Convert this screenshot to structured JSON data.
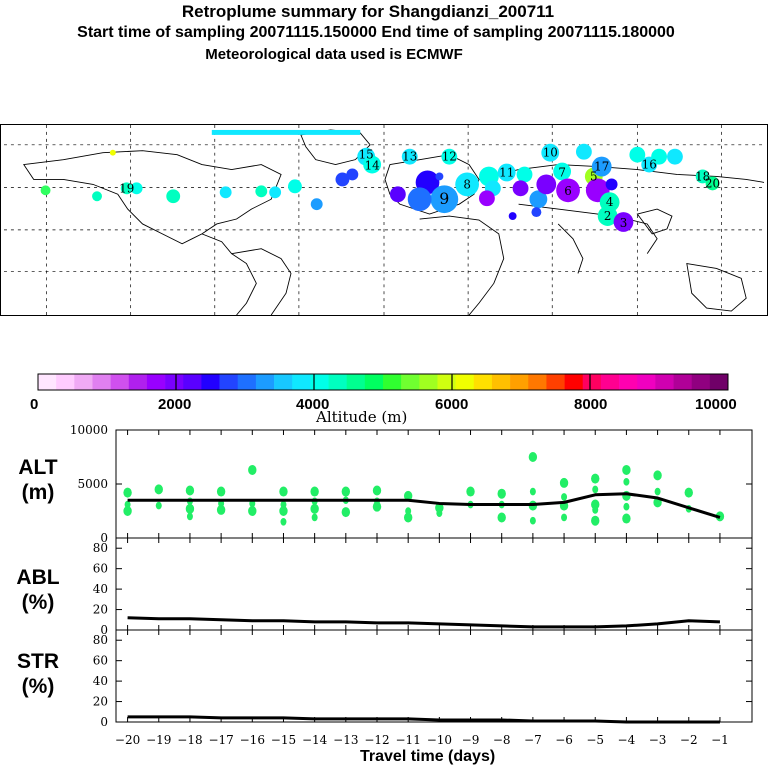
{
  "title": {
    "line1": "Retroplume summary for Shangdianzi_200711",
    "line2": "Start time of sampling 20071115.150000     End time of sampling 20071115.180000",
    "line3": "Meteorological data used is ECMWF"
  },
  "colors": {
    "marker": "#22ee66",
    "line": "#000000",
    "map_lines": "#000000"
  },
  "colorbar": {
    "labels": [
      "0",
      "2000",
      "4000",
      "6000",
      "8000",
      "10000"
    ],
    "title": "Altitude (m)",
    "palette": [
      "#ffe6ff",
      "#ffccff",
      "#f0aaf5",
      "#e080f0",
      "#d050ee",
      "#b020ee",
      "#9900ff",
      "#7a00ff",
      "#5a00ff",
      "#2200ff",
      "#2244ff",
      "#1e70ff",
      "#1c9cff",
      "#18c8ff",
      "#10e8ff",
      "#00ffe8",
      "#00ffc0",
      "#00ff90",
      "#00ff60",
      "#30ff30",
      "#70ff30",
      "#a0ff20",
      "#d0ff10",
      "#f0ff00",
      "#ffe000",
      "#ffc000",
      "#ffa000",
      "#ff7800",
      "#ff4000",
      "#ff0000",
      "#ff0060",
      "#ff0090",
      "#ff00b0",
      "#f000c0",
      "#d000b0",
      "#b00098",
      "#900080",
      "#700068"
    ]
  },
  "map": {
    "labels": [
      "15",
      "14",
      "13",
      "12",
      "11",
      "10",
      "9",
      "8",
      "7",
      "6",
      "5",
      "4",
      "3",
      "2",
      "17",
      "16",
      "18",
      "19",
      "20"
    ]
  },
  "chart_data": [
    {
      "type": "line",
      "name": "ALT",
      "ylabel_top": "ALT",
      "ylabel_unit": "(m)",
      "ylim": [
        0,
        10000
      ],
      "yticks": [
        "10000",
        "5000",
        "0"
      ],
      "x": [
        -20,
        -19,
        -18,
        -17,
        -16,
        -15,
        -14,
        -13,
        -12,
        -11,
        -10,
        -9,
        -8,
        -7,
        -6,
        -5,
        -4,
        -3,
        -2,
        -1
      ],
      "values": [
        3500,
        3500,
        3500,
        3500,
        3500,
        3500,
        3500,
        3500,
        3500,
        3500,
        3200,
        3100,
        3100,
        3100,
        3300,
        4000,
        4100,
        3700,
        2800,
        1900
      ],
      "scatter": [
        {
          "x": -20,
          "y": [
            4200,
            3100,
            2500
          ]
        },
        {
          "x": -19,
          "y": [
            4500,
            3000
          ]
        },
        {
          "x": -18,
          "y": [
            4400,
            3400,
            2700,
            2000
          ]
        },
        {
          "x": -17,
          "y": [
            4300,
            3200,
            2600
          ]
        },
        {
          "x": -16,
          "y": [
            6300,
            3200,
            2500
          ]
        },
        {
          "x": -15,
          "y": [
            4300,
            3100,
            2500,
            1500
          ]
        },
        {
          "x": -14,
          "y": [
            4300,
            3400,
            2700,
            1900
          ]
        },
        {
          "x": -13,
          "y": [
            4300,
            3500,
            2400
          ]
        },
        {
          "x": -12,
          "y": [
            4400,
            3400,
            2900
          ]
        },
        {
          "x": -11,
          "y": [
            3900,
            2500,
            1900
          ]
        },
        {
          "x": -10,
          "y": [
            2800,
            2300
          ]
        },
        {
          "x": -9,
          "y": [
            4300,
            3100
          ]
        },
        {
          "x": -8,
          "y": [
            4100,
            3100,
            1900
          ]
        },
        {
          "x": -7,
          "y": [
            7500,
            4300,
            3000,
            1600
          ]
        },
        {
          "x": -6,
          "y": [
            5100,
            3800,
            3000,
            1900
          ]
        },
        {
          "x": -5,
          "y": [
            5500,
            4500,
            3100,
            2600,
            1600
          ]
        },
        {
          "x": -4,
          "y": [
            6300,
            5200,
            3900,
            2900,
            1800
          ]
        },
        {
          "x": -3,
          "y": [
            5800,
            4300,
            3300
          ]
        },
        {
          "x": -2,
          "y": [
            4200,
            2700
          ]
        },
        {
          "x": -1,
          "y": [
            2000
          ]
        }
      ]
    },
    {
      "type": "line",
      "name": "ABL",
      "ylabel_top": "ABL",
      "ylabel_unit": "(%)",
      "ylim": [
        0,
        90
      ],
      "yticks": [
        "80",
        "60",
        "40",
        "20",
        "0"
      ],
      "x": [
        -20,
        -19,
        -18,
        -17,
        -16,
        -15,
        -14,
        -13,
        -12,
        -11,
        -10,
        -9,
        -8,
        -7,
        -6,
        -5,
        -4,
        -3,
        -2,
        -1
      ],
      "values": [
        12,
        11,
        11,
        10,
        9,
        9,
        8,
        8,
        7,
        7,
        6,
        5,
        4,
        3,
        3,
        3,
        4,
        6,
        9,
        8
      ]
    },
    {
      "type": "line",
      "name": "STR",
      "ylabel_top": "STR",
      "ylabel_unit": "(%)",
      "ylim": [
        0,
        90
      ],
      "yticks": [
        "80",
        "60",
        "40",
        "20",
        "0"
      ],
      "x": [
        -20,
        -19,
        -18,
        -17,
        -16,
        -15,
        -14,
        -13,
        -12,
        -11,
        -10,
        -9,
        -8,
        -7,
        -6,
        -5,
        -4,
        -3,
        -2,
        -1
      ],
      "values": [
        5,
        5,
        5,
        4,
        4,
        4,
        3,
        3,
        3,
        3,
        2,
        2,
        2,
        1,
        1,
        1,
        0,
        0,
        0,
        0
      ]
    }
  ],
  "xaxis": {
    "ticks": [
      "−20",
      "−19",
      "−18",
      "−17",
      "−16",
      "−15",
      "−14",
      "−13",
      "−12",
      "−11",
      "−10",
      "−9",
      "−8",
      "−7",
      "−6",
      "−5",
      "−4",
      "−3",
      "−2",
      "−1"
    ],
    "label": "Travel time (days)"
  }
}
